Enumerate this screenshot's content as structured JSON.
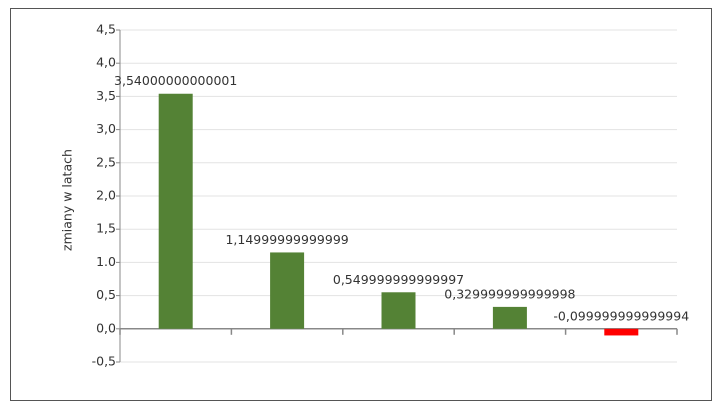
{
  "chart_data": {
    "type": "bar",
    "y_label": "zmiany w latach",
    "categories": [
      null,
      null,
      null,
      null,
      null
    ],
    "values": [
      3.54000000000001,
      1.14999999999999,
      0.549999999999997,
      0.329999999999998,
      -0.099999999999994
    ],
    "value_labels": [
      "3,54000000000001",
      "1,14999999999999",
      "0,549999999999997",
      "0,329999999999998",
      "-0,099999999999994"
    ],
    "colors": [
      "#548235",
      "#548235",
      "#548235",
      "#548235",
      "#ff0000"
    ],
    "ylim": [
      -0.5,
      4.5
    ],
    "yticks": [
      {
        "value": -0.5,
        "label": "-0,5"
      },
      {
        "value": 0,
        "label": "0,0"
      },
      {
        "value": 0.5,
        "label": "0,5"
      },
      {
        "value": 1,
        "label": "1.0"
      },
      {
        "value": 1.5,
        "label": "1,5"
      },
      {
        "value": 2,
        "label": "2,0"
      },
      {
        "value": 2.5,
        "label": "2,5"
      },
      {
        "value": 3,
        "label": "3,0"
      },
      {
        "value": 3.5,
        "label": "3,5"
      },
      {
        "value": 4,
        "label": "4,0"
      },
      {
        "value": 4.5,
        "label": "4,5"
      }
    ],
    "grid": true
  }
}
